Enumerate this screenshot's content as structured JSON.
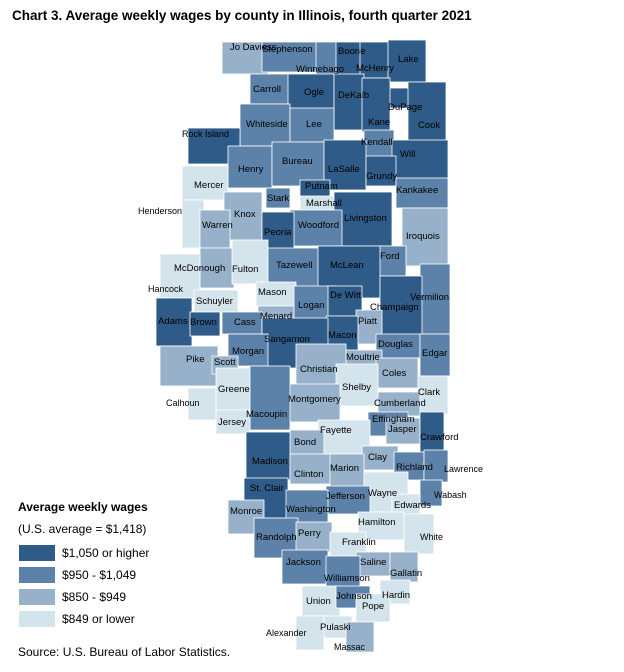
{
  "title": "Chart 3. Average weekly wages by county in Illinois, fourth quarter 2021",
  "source": "Source: U.S. Bureau of Labor Statistics.",
  "legend": {
    "title": "Average weekly wages",
    "subtitle": "(U.S. average = $1,418)",
    "items": [
      {
        "label": "$1,050 or higher",
        "color": "#2e5b87"
      },
      {
        "label": "$950 - $1,049",
        "color": "#5d82aa"
      },
      {
        "label": "$850 - $949",
        "color": "#96b1c9"
      },
      {
        "label": "$849 or lower",
        "color": "#d4e4ec"
      }
    ]
  },
  "counties": [
    {
      "name": "Jo Daviess",
      "tier": 2
    },
    {
      "name": "Stephenson",
      "tier": 1
    },
    {
      "name": "Winnebago",
      "tier": 1
    },
    {
      "name": "Boone",
      "tier": 0
    },
    {
      "name": "McHenry",
      "tier": 0
    },
    {
      "name": "Lake",
      "tier": 0
    },
    {
      "name": "Carroll",
      "tier": 1
    },
    {
      "name": "Ogle",
      "tier": 0
    },
    {
      "name": "DeKalb",
      "tier": 0
    },
    {
      "name": "DuPage",
      "tier": 0
    },
    {
      "name": "Kane",
      "tier": 0
    },
    {
      "name": "Cook",
      "tier": 0
    },
    {
      "name": "Whiteside",
      "tier": 1
    },
    {
      "name": "Lee",
      "tier": 1
    },
    {
      "name": "Rock Island",
      "tier": 0
    },
    {
      "name": "Kendall",
      "tier": 1
    },
    {
      "name": "Will",
      "tier": 0
    },
    {
      "name": "Henry",
      "tier": 1
    },
    {
      "name": "Bureau",
      "tier": 1
    },
    {
      "name": "LaSalle",
      "tier": 0
    },
    {
      "name": "Grundy",
      "tier": 0
    },
    {
      "name": "Mercer",
      "tier": 3
    },
    {
      "name": "Putnam",
      "tier": 0
    },
    {
      "name": "Kankakee",
      "tier": 1
    },
    {
      "name": "Stark",
      "tier": 1
    },
    {
      "name": "Marshall",
      "tier": 3
    },
    {
      "name": "Henderson",
      "tier": 3
    },
    {
      "name": "Knox",
      "tier": 2
    },
    {
      "name": "Livingston",
      "tier": 0
    },
    {
      "name": "Warren",
      "tier": 2
    },
    {
      "name": "Woodford",
      "tier": 1
    },
    {
      "name": "Peoria",
      "tier": 0
    },
    {
      "name": "Iroquois",
      "tier": 2
    },
    {
      "name": "Ford",
      "tier": 1
    },
    {
      "name": "McDonough",
      "tier": 2
    },
    {
      "name": "Fulton",
      "tier": 3
    },
    {
      "name": "Tazewell",
      "tier": 1
    },
    {
      "name": "McLean",
      "tier": 0
    },
    {
      "name": "Hancock",
      "tier": 3
    },
    {
      "name": "Mason",
      "tier": 3
    },
    {
      "name": "Vermilion",
      "tier": 1
    },
    {
      "name": "Schuyler",
      "tier": 3
    },
    {
      "name": "Logan",
      "tier": 1
    },
    {
      "name": "De Witt",
      "tier": 0
    },
    {
      "name": "Champaign",
      "tier": 0
    },
    {
      "name": "Menard",
      "tier": 2
    },
    {
      "name": "Adams",
      "tier": 0
    },
    {
      "name": "Brown",
      "tier": 0
    },
    {
      "name": "Cass",
      "tier": 1
    },
    {
      "name": "Piatt",
      "tier": 2
    },
    {
      "name": "Macon",
      "tier": 0
    },
    {
      "name": "Sangamon",
      "tier": 0
    },
    {
      "name": "Douglas",
      "tier": 1
    },
    {
      "name": "Morgan",
      "tier": 1
    },
    {
      "name": "Edgar",
      "tier": 1
    },
    {
      "name": "Moultrie",
      "tier": 2
    },
    {
      "name": "Pike",
      "tier": 2
    },
    {
      "name": "Scott",
      "tier": 2
    },
    {
      "name": "Christian",
      "tier": 2
    },
    {
      "name": "Coles",
      "tier": 2
    },
    {
      "name": "Shelby",
      "tier": 3
    },
    {
      "name": "Greene",
      "tier": 3
    },
    {
      "name": "Clark",
      "tier": 3
    },
    {
      "name": "Montgomery",
      "tier": 2
    },
    {
      "name": "Calhoun",
      "tier": 3
    },
    {
      "name": "Cumberland",
      "tier": 2
    },
    {
      "name": "Macoupin",
      "tier": 1
    },
    {
      "name": "Effingham",
      "tier": 1
    },
    {
      "name": "Jersey",
      "tier": 3
    },
    {
      "name": "Fayette",
      "tier": 3
    },
    {
      "name": "Jasper",
      "tier": 2
    },
    {
      "name": "Crawford",
      "tier": 0
    },
    {
      "name": "Bond",
      "tier": 2
    },
    {
      "name": "Madison",
      "tier": 0
    },
    {
      "name": "Clay",
      "tier": 2
    },
    {
      "name": "Richland",
      "tier": 1
    },
    {
      "name": "Lawrence",
      "tier": 1
    },
    {
      "name": "Clinton",
      "tier": 2
    },
    {
      "name": "Marion",
      "tier": 2
    },
    {
      "name": "St. Clair",
      "tier": 0
    },
    {
      "name": "Wayne",
      "tier": 3
    },
    {
      "name": "Wabash",
      "tier": 1
    },
    {
      "name": "Jefferson",
      "tier": 1
    },
    {
      "name": "Edwards",
      "tier": 3
    },
    {
      "name": "Monroe",
      "tier": 2
    },
    {
      "name": "Washington",
      "tier": 1
    },
    {
      "name": "Hamilton",
      "tier": 3
    },
    {
      "name": "White",
      "tier": 3
    },
    {
      "name": "Randolph",
      "tier": 1
    },
    {
      "name": "Perry",
      "tier": 2
    },
    {
      "name": "Franklin",
      "tier": 3
    },
    {
      "name": "Jackson",
      "tier": 1
    },
    {
      "name": "Saline",
      "tier": 2
    },
    {
      "name": "Williamson",
      "tier": 1
    },
    {
      "name": "Gallatin",
      "tier": 2
    },
    {
      "name": "Union",
      "tier": 3
    },
    {
      "name": "Johnson",
      "tier": 1
    },
    {
      "name": "Hardin",
      "tier": 3
    },
    {
      "name": "Pope",
      "tier": 3
    },
    {
      "name": "Alexander",
      "tier": 3
    },
    {
      "name": "Pulaski",
      "tier": 3
    },
    {
      "name": "Massac",
      "tier": 2
    }
  ]
}
